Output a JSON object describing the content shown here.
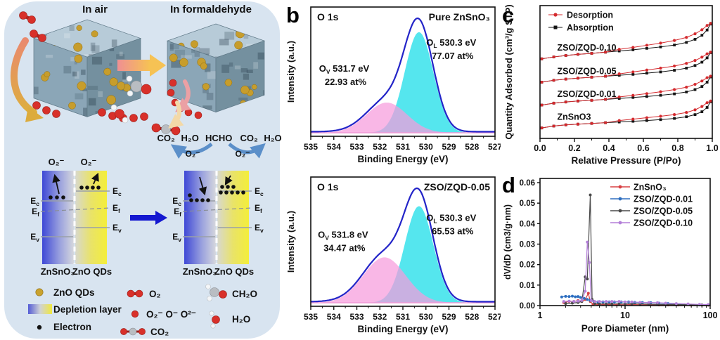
{
  "figure": {
    "panel_labels": {
      "a": "a",
      "b": "b",
      "c": "c",
      "d": "d"
    }
  },
  "panel_a": {
    "title_air": "In air",
    "title_formaldehyde": "In formaldehyde",
    "reaction": [
      "CO₂",
      "H₂O",
      "HCHO",
      "CO₂",
      "H₂O"
    ],
    "superoxide": "O₂⁻",
    "band": {
      "e": "E",
      "sub_c": "c",
      "sub_f": "f",
      "sub_v": "v",
      "znsno3": "ZnSnO₃",
      "zno_qds": "ZnO QDs"
    },
    "legend": [
      {
        "icon": "zno-qd-dot",
        "label": "ZnO QDs"
      },
      {
        "icon": "depletion-gradient",
        "label": "Depletion layer"
      },
      {
        "icon": "electron-dot",
        "label": "Electron"
      },
      {
        "icon": "o2-molecule",
        "label": "O₂"
      },
      {
        "icon": "oxygen-ion-dot",
        "label": "O₂⁻  O⁻  O²⁻"
      },
      {
        "icon": "co2-molecule",
        "label": "CO₂"
      },
      {
        "icon": "ch2o-molecule",
        "label": "CH₂O"
      },
      {
        "icon": "h2o-molecule",
        "label": "H₂O"
      }
    ]
  },
  "colors": {
    "panel_a_bg": "#d8e4f0",
    "xps_envelope": "#2324c8",
    "xps_ol_fill": "#55e6ee",
    "xps_ov_fill": "#f79bdc",
    "desorption_red": "#d42a2e",
    "absorption_black": "#141414"
  },
  "chart_data": [
    {
      "id": "xps-top",
      "panel": "b",
      "type": "area",
      "title": "O 1s",
      "sample": "Pure ZnSnO₃",
      "xlabel": "Binding Energy (eV)",
      "ylabel": "Intensity (a.u.)",
      "x_range": [
        535,
        527
      ],
      "x_ticks": [
        535,
        534,
        533,
        532,
        531,
        530,
        529,
        528,
        527
      ],
      "envelope_color": "#2324c8",
      "baseline_color": "#f09ad6",
      "peaks": [
        {
          "name": "O_L",
          "center": 530.3,
          "amplitude": 1.0,
          "sigma": 0.62,
          "fill": "#55e6ee",
          "label": {
            "sym": "O",
            "sub": "L",
            "ev": "530.3 eV",
            "at": "77.07 at%"
          }
        },
        {
          "name": "O_V",
          "center": 531.7,
          "amplitude": 0.3,
          "sigma": 0.88,
          "fill": "#f79bdc",
          "label": {
            "sym": "O",
            "sub": "V",
            "ev": "531.7 eV",
            "at": "22.93 at%"
          }
        }
      ]
    },
    {
      "id": "xps-bottom",
      "panel": "b",
      "type": "area",
      "title": "O 1s",
      "sample": "ZSO/ZQD-0.05",
      "xlabel": "Binding Energy (eV)",
      "ylabel": "Intensity (a.u.)",
      "x_range": [
        535,
        527
      ],
      "x_ticks": [
        535,
        534,
        533,
        532,
        531,
        530,
        529,
        528,
        527
      ],
      "envelope_color": "#2324c8",
      "baseline_color": "#f09ad6",
      "peaks": [
        {
          "name": "O_L",
          "center": 530.3,
          "amplitude": 1.0,
          "sigma": 0.62,
          "fill": "#55e6ee",
          "label": {
            "sym": "O",
            "sub": "L",
            "ev": "530.3 eV",
            "at": "65.53 at%"
          }
        },
        {
          "name": "O_V",
          "center": 531.8,
          "amplitude": 0.47,
          "sigma": 0.92,
          "fill": "#f79bdc",
          "label": {
            "sym": "O",
            "sub": "V",
            "ev": "531.8 eV",
            "at": "34.47 at%"
          }
        }
      ]
    },
    {
      "id": "isotherm",
      "panel": "c",
      "type": "scatter-line",
      "xlabel": "Relative Pressure (P/Po)",
      "ylabel": "Quantity Adsorbed (cm³/g STP)",
      "x_ticks": [
        "0.0",
        "0.2",
        "0.4",
        "0.6",
        "0.8",
        "1.0"
      ],
      "ylim": [
        0,
        5.1
      ],
      "legend": [
        {
          "label": "Desorption",
          "color": "#d42a2e",
          "marker": "circle"
        },
        {
          "label": "Absorption",
          "color": "#141414",
          "marker": "square"
        }
      ],
      "x": [
        0.01,
        0.08,
        0.15,
        0.22,
        0.3,
        0.38,
        0.46,
        0.54,
        0.62,
        0.7,
        0.78,
        0.85,
        0.9,
        0.94,
        0.97,
        0.99
      ],
      "series": [
        {
          "label": "ZSO/ZQD-0.10",
          "absorption": [
            3.22,
            3.3,
            3.36,
            3.41,
            3.45,
            3.5,
            3.55,
            3.6,
            3.66,
            3.72,
            3.8,
            3.91,
            4.04,
            4.21,
            4.43,
            4.68
          ],
          "desorption": [
            3.22,
            3.3,
            3.36,
            3.41,
            3.45,
            3.5,
            3.62,
            3.7,
            3.79,
            3.88,
            3.99,
            4.12,
            4.27,
            4.44,
            4.62,
            4.71
          ]
        },
        {
          "label": "ZSO/ZQD-0.05",
          "absorption": [
            2.24,
            2.32,
            2.37,
            2.41,
            2.45,
            2.49,
            2.53,
            2.57,
            2.62,
            2.67,
            2.74,
            2.83,
            2.94,
            3.08,
            3.26,
            3.48
          ],
          "desorption": [
            2.24,
            2.32,
            2.37,
            2.41,
            2.45,
            2.49,
            2.59,
            2.67,
            2.75,
            2.83,
            2.92,
            3.03,
            3.15,
            3.29,
            3.43,
            3.5
          ]
        },
        {
          "label": "ZSO/ZQD-0.01",
          "absorption": [
            1.28,
            1.36,
            1.41,
            1.45,
            1.48,
            1.52,
            1.56,
            1.6,
            1.64,
            1.69,
            1.75,
            1.83,
            1.93,
            2.06,
            2.24,
            2.46
          ],
          "desorption": [
            1.28,
            1.36,
            1.41,
            1.45,
            1.48,
            1.52,
            1.62,
            1.69,
            1.76,
            1.84,
            1.93,
            2.03,
            2.15,
            2.29,
            2.43,
            2.49
          ]
        },
        {
          "label": "ZnSnO3",
          "absorption": [
            0.32,
            0.4,
            0.45,
            0.48,
            0.51,
            0.54,
            0.57,
            0.6,
            0.63,
            0.67,
            0.72,
            0.79,
            0.88,
            1.0,
            1.18,
            1.42
          ],
          "desorption": [
            0.32,
            0.4,
            0.45,
            0.48,
            0.51,
            0.54,
            0.63,
            0.69,
            0.75,
            0.81,
            0.88,
            0.97,
            1.08,
            1.22,
            1.38,
            1.45
          ]
        }
      ]
    },
    {
      "id": "pore",
      "panel": "d",
      "type": "scatter-line",
      "x_scale": "log",
      "xlabel": "Pore Diameter (nm)",
      "ylabel": "dV/dD (cm3/g·nm)",
      "x_ticks": [
        1,
        10,
        100
      ],
      "y_ticks": [
        "0.00",
        "0.01",
        "0.02",
        "0.03",
        "0.04",
        "0.05",
        "0.06"
      ],
      "ylim": [
        0,
        0.06
      ],
      "series": [
        {
          "label": "ZnSnO₃",
          "color": "#d84043",
          "points": [
            [
              1.9,
              0.0015
            ],
            [
              2.2,
              0.002
            ],
            [
              2.5,
              0.002
            ],
            [
              2.8,
              0.0025
            ],
            [
              3.1,
              0.002
            ],
            [
              3.4,
              0.003
            ],
            [
              3.7,
              0.006
            ],
            [
              3.9,
              0.002
            ],
            [
              4.2,
              0.0006
            ],
            [
              4.8,
              0.0005
            ],
            [
              5.5,
              0.0005
            ],
            [
              6.5,
              0.0005
            ],
            [
              8,
              0.0004
            ],
            [
              10,
              0.0004
            ],
            [
              12,
              0.0005
            ],
            [
              15,
              0.0004
            ],
            [
              20,
              0.0004
            ],
            [
              25,
              0.0003
            ],
            [
              32,
              0.0003
            ],
            [
              42,
              0.0003
            ],
            [
              60,
              0.0002
            ],
            [
              80,
              0.0002
            ],
            [
              95,
              0.0002
            ]
          ]
        },
        {
          "label": "ZSO/ZQD-0.01",
          "color": "#2e6fc0",
          "points": [
            [
              1.8,
              0.0042
            ],
            [
              2.0,
              0.0045
            ],
            [
              2.2,
              0.0044
            ],
            [
              2.4,
              0.0046
            ],
            [
              2.6,
              0.0043
            ],
            [
              2.8,
              0.0044
            ],
            [
              3.0,
              0.004
            ],
            [
              3.3,
              0.0035
            ],
            [
              3.6,
              0.003
            ],
            [
              3.9,
              0.0025
            ],
            [
              4.3,
              0.002
            ],
            [
              4.8,
              0.0018
            ],
            [
              5.5,
              0.0018
            ],
            [
              6.5,
              0.0018
            ],
            [
              7.5,
              0.0018
            ],
            [
              9,
              0.0018
            ],
            [
              11,
              0.0018
            ],
            [
              13,
              0.0016
            ],
            [
              16,
              0.0015
            ],
            [
              20,
              0.0014
            ],
            [
              25,
              0.0012
            ],
            [
              32,
              0.001
            ],
            [
              40,
              0.0008
            ],
            [
              55,
              0.0005
            ],
            [
              75,
              0.0003
            ],
            [
              95,
              0.0003
            ]
          ]
        },
        {
          "label": "ZSO/ZQD-0.05",
          "color": "#4a4a4a",
          "points": [
            [
              2.0,
              0.001
            ],
            [
              2.4,
              0.0012
            ],
            [
              2.8,
              0.0015
            ],
            [
              3.1,
              0.002
            ],
            [
              3.4,
              0.014
            ],
            [
              3.6,
              0.013
            ],
            [
              3.9,
              0.054
            ],
            [
              4.1,
              0.003
            ],
            [
              4.4,
              0.001
            ],
            [
              5,
              0.0008
            ],
            [
              6,
              0.0008
            ],
            [
              7,
              0.0008
            ],
            [
              8.5,
              0.0008
            ],
            [
              10,
              0.0008
            ],
            [
              12,
              0.0009
            ],
            [
              15,
              0.0008
            ],
            [
              19,
              0.0007
            ],
            [
              24,
              0.0006
            ],
            [
              30,
              0.0005
            ],
            [
              38,
              0.0005
            ],
            [
              50,
              0.0004
            ],
            [
              80,
              0.0003
            ],
            [
              95,
              0.0003
            ]
          ]
        },
        {
          "label": "ZSO/ZQD-0.10",
          "color": "#b37fd8",
          "points": [
            [
              1.9,
              0.002
            ],
            [
              2.2,
              0.0022
            ],
            [
              2.5,
              0.002
            ],
            [
              2.8,
              0.0022
            ],
            [
              3.1,
              0.0025
            ],
            [
              3.4,
              0.007
            ],
            [
              3.6,
              0.031
            ],
            [
              3.8,
              0.021
            ],
            [
              4.0,
              0.0025
            ],
            [
              4.4,
              0.002
            ],
            [
              5,
              0.002
            ],
            [
              6,
              0.002
            ],
            [
              7,
              0.002
            ],
            [
              8.5,
              0.002
            ],
            [
              10,
              0.0018
            ],
            [
              12,
              0.0018
            ],
            [
              15,
              0.0016
            ],
            [
              19,
              0.0015
            ],
            [
              24,
              0.0014
            ],
            [
              30,
              0.0012
            ],
            [
              40,
              0.001
            ],
            [
              55,
              0.0008
            ],
            [
              75,
              0.0006
            ],
            [
              95,
              0.0005
            ]
          ]
        }
      ]
    }
  ]
}
